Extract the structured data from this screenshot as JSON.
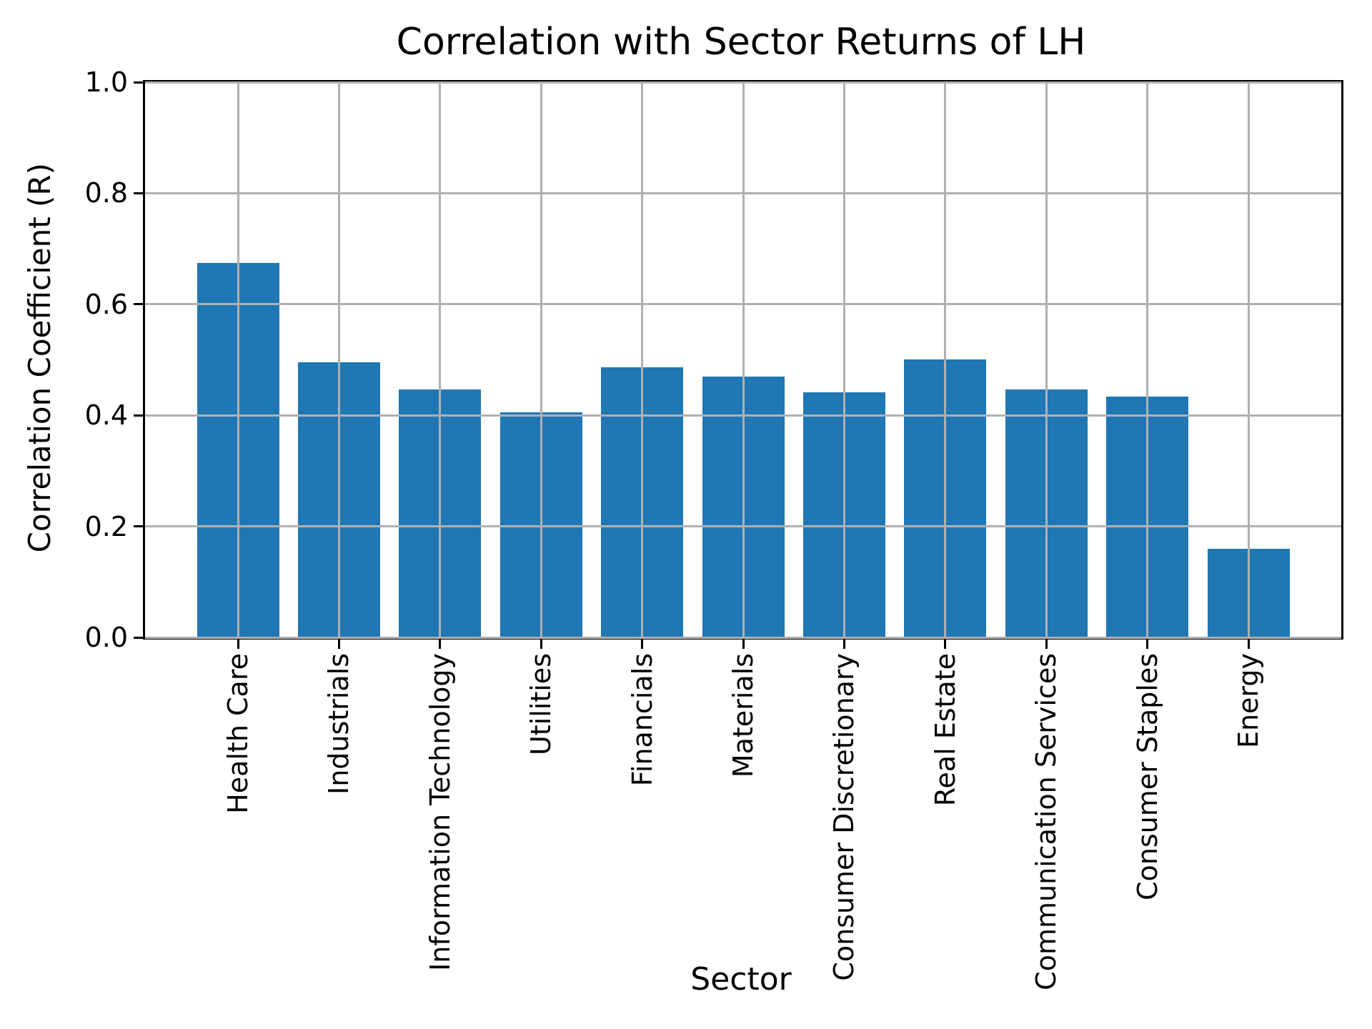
{
  "chart_data": {
    "type": "bar",
    "title": "Correlation with Sector Returns of LH",
    "xlabel": "Sector",
    "ylabel": "Correlation Coefficient (R)",
    "categories": [
      "Health Care",
      "Industrials",
      "Information Technology",
      "Utilities",
      "Financials",
      "Materials",
      "Consumer Discretionary",
      "Real Estate",
      "Communication Services",
      "Consumer Staples",
      "Energy"
    ],
    "values": [
      0.675,
      0.495,
      0.446,
      0.406,
      0.487,
      0.47,
      0.442,
      0.501,
      0.447,
      0.434,
      0.16
    ],
    "ylim": [
      0.0,
      1.0
    ],
    "yticks": [
      0.0,
      0.2,
      0.4,
      0.6,
      0.8,
      1.0
    ],
    "ytick_labels": [
      "0.0",
      "0.2",
      "0.4",
      "0.6",
      "0.8",
      "1.0"
    ],
    "grid": true,
    "legend_position": "none",
    "colors": {
      "bar": "#1f77b4",
      "grid": "#b0b0b0",
      "axis": "#000000",
      "background": "#ffffff"
    }
  }
}
